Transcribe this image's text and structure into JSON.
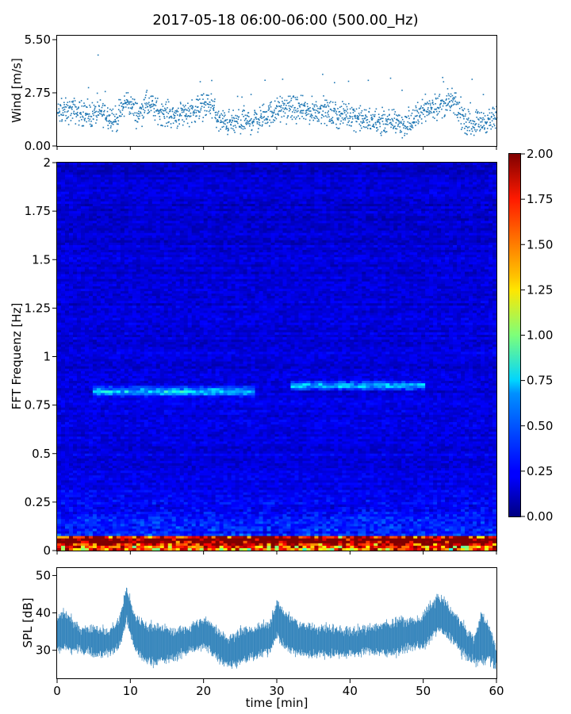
{
  "title": "2017-05-18 06:00-06:00 (500.00_Hz)",
  "colors": {
    "wind": "#1f77b4",
    "spl": "#1f77b4",
    "axis": "#000000"
  },
  "chart_data": [
    {
      "type": "scatter",
      "panel": "wind",
      "ylabel": "Wind [m/s]",
      "xlim": [
        0,
        60
      ],
      "ylim": [
        0,
        5.5
      ],
      "yticks": [
        0.0,
        2.75,
        5.5
      ],
      "ytick_labels": [
        "0.00",
        "2.75",
        "5.50"
      ],
      "series": [
        {
          "x": [
            0,
            2,
            4,
            6,
            8,
            9.5,
            11,
            12,
            14,
            16,
            18,
            20,
            21,
            22,
            24,
            26,
            28,
            30,
            32,
            34,
            36,
            38,
            40,
            42,
            44,
            46,
            48,
            50,
            52,
            54,
            55,
            56,
            58,
            60
          ],
          "y": [
            1.7,
            1.9,
            1.6,
            1.8,
            1.4,
            2.4,
            1.6,
            2.2,
            1.8,
            1.6,
            1.8,
            2.1,
            2.2,
            1.3,
            1.2,
            1.3,
            1.5,
            1.9,
            2.0,
            1.8,
            1.9,
            1.6,
            1.7,
            1.3,
            1.3,
            1.3,
            1.1,
            2.0,
            2.1,
            2.3,
            1.7,
            1.2,
            1.3,
            1.4
          ]
        }
      ]
    },
    {
      "type": "heatmap",
      "panel": "spectrogram",
      "ylabel": "FFT Frequenz [Hz]",
      "xlim": [
        0,
        60
      ],
      "ylim": [
        0,
        2
      ],
      "yticks": [
        0,
        0.25,
        0.5,
        0.75,
        1,
        1.25,
        1.5,
        1.75,
        2
      ],
      "ytick_labels": [
        "0",
        "0.25",
        "0.5",
        "0.75",
        "1",
        "1.25",
        "1.5",
        "1.75",
        "2"
      ],
      "colormap": "jet",
      "colorbar": {
        "vmin": 0.0,
        "vmax": 2.0,
        "ticks": [
          0.0,
          0.25,
          0.5,
          0.75,
          1.0,
          1.25,
          1.5,
          1.75,
          2.0
        ],
        "tick_labels": [
          "0.00",
          "0.25",
          "0.50",
          "0.75",
          "1.00",
          "1.25",
          "1.50",
          "1.75",
          "2.00"
        ]
      },
      "features": [
        {
          "freq": 0.82,
          "t_start": 5,
          "t_end": 27,
          "level": 0.7
        },
        {
          "freq": 0.85,
          "t_start": 32,
          "t_end": 50,
          "level": 0.6
        },
        {
          "freq": 0.05,
          "t_start": 0,
          "t_end": 60,
          "level": 1.3
        }
      ]
    },
    {
      "type": "area",
      "panel": "spl",
      "ylabel": "SPL [dB]",
      "xlabel": "time [min]",
      "xlim": [
        0,
        60
      ],
      "ylim": [
        22.5,
        52
      ],
      "yticks": [
        30,
        40,
        50
      ],
      "ytick_labels": [
        "30",
        "40",
        "50"
      ],
      "xticks": [
        0,
        10,
        20,
        30,
        40,
        50,
        60
      ],
      "xtick_labels": [
        "0",
        "10",
        "20",
        "30",
        "40",
        "50",
        "60"
      ],
      "series": [
        {
          "x": [
            0,
            1,
            2,
            3,
            5,
            7,
            8.5,
            9.5,
            10.5,
            12,
            14,
            16,
            18,
            20,
            21,
            22,
            23.5,
            25,
            27,
            29,
            30,
            31,
            33,
            35,
            37,
            40,
            43,
            45,
            47,
            49,
            50,
            51,
            52,
            53,
            54,
            55,
            56,
            57,
            58,
            59,
            60
          ],
          "low": [
            30,
            31,
            30,
            30,
            29,
            29,
            31,
            38,
            31,
            27,
            27,
            28,
            30,
            31,
            30,
            28,
            26,
            27,
            28,
            30,
            34,
            31,
            29,
            29,
            29,
            29,
            30,
            29,
            30,
            31,
            31,
            33,
            36,
            34,
            33,
            30,
            28,
            27,
            27,
            28,
            25
          ],
          "high": [
            38,
            40,
            38,
            36,
            36,
            35,
            38,
            47,
            39,
            37,
            36,
            35,
            36,
            38,
            37,
            35,
            33,
            35,
            36,
            37,
            43,
            40,
            37,
            36,
            36,
            35,
            36,
            37,
            38,
            38,
            39,
            42,
            44,
            43,
            40,
            38,
            35,
            33,
            40,
            36,
            30
          ]
        }
      ]
    }
  ]
}
